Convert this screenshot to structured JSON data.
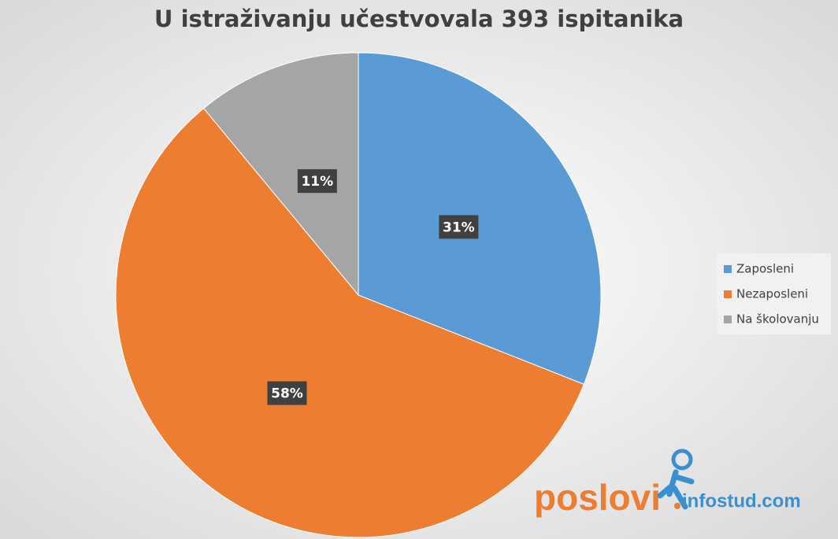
{
  "chart_data": {
    "type": "pie",
    "title": "U istraživanju učestvovala 393 ispitanika",
    "categories": [
      "Zaposleni",
      "Nezaposleni",
      "Na školovanju"
    ],
    "values": [
      31,
      58,
      11
    ],
    "value_labels": [
      "31%",
      "58%",
      "11%"
    ],
    "colors": [
      "#5b9bd5",
      "#ed7d31",
      "#a5a5a5"
    ],
    "legend": "right"
  },
  "logo": {
    "brand": "poslovi",
    "domain": "infostud.com"
  }
}
